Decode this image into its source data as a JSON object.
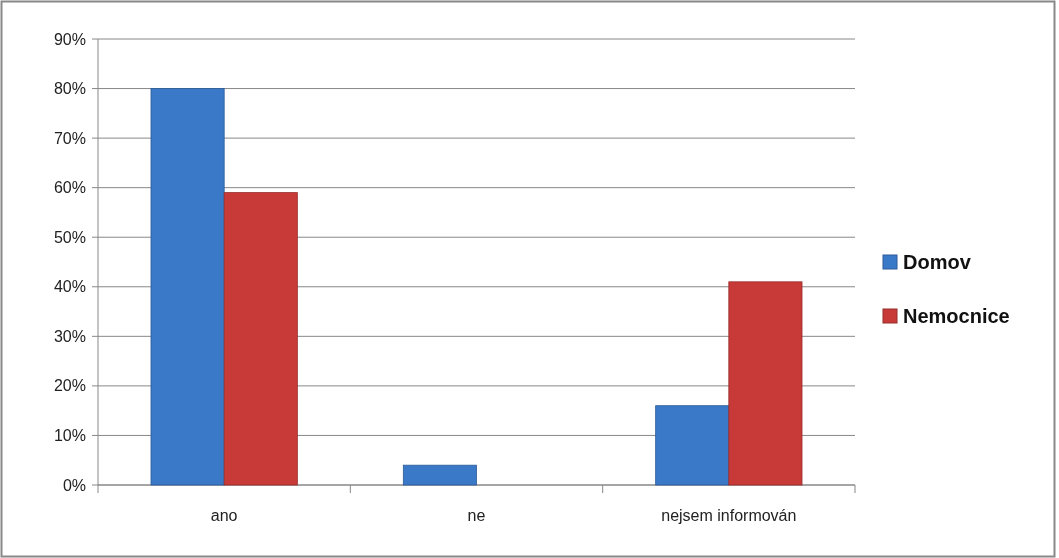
{
  "chart_data": {
    "type": "bar",
    "categories": [
      "ano",
      "ne",
      "nejsem informován"
    ],
    "series": [
      {
        "name": "Domov",
        "color": "#3a78c8",
        "values": [
          80,
          4,
          16
        ]
      },
      {
        "name": "Nemocnice",
        "color": "#c83a38",
        "values": [
          59,
          0,
          41
        ]
      }
    ],
    "ylim": [
      0,
      90
    ],
    "yticks": [
      {
        "value": 0,
        "label": "0%"
      },
      {
        "value": 10,
        "label": "10%"
      },
      {
        "value": 20,
        "label": "20%"
      },
      {
        "value": 30,
        "label": "30%"
      },
      {
        "value": 40,
        "label": "40%"
      },
      {
        "value": 50,
        "label": "50%"
      },
      {
        "value": 60,
        "label": "60%"
      },
      {
        "value": 70,
        "label": "70%"
      },
      {
        "value": 80,
        "label": "80%"
      },
      {
        "value": 90,
        "label": "90%"
      }
    ],
    "grid": "y",
    "legend": "right"
  }
}
